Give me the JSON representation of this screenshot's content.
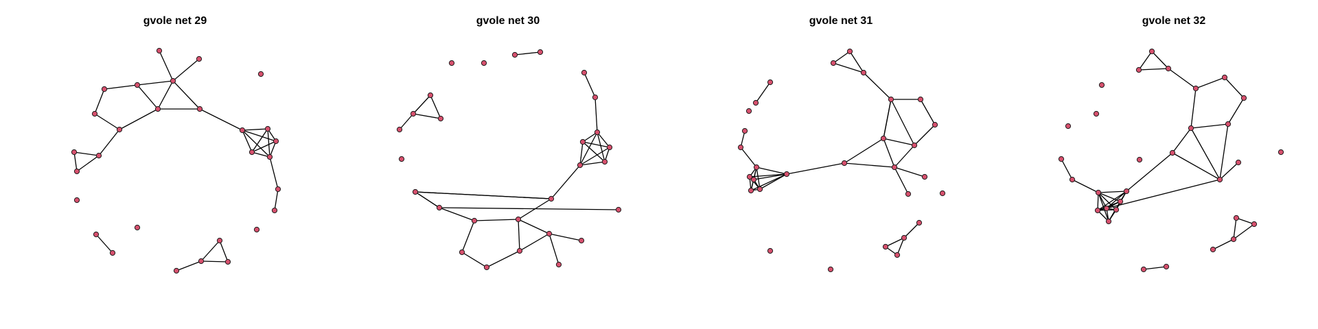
{
  "figure": {
    "panels": [
      {
        "title": "gvole net 29"
      },
      {
        "title": "gvole net 30"
      },
      {
        "title": "gvole net 31"
      },
      {
        "title": "gvole net 32"
      }
    ],
    "node_color": "#d6506d",
    "edge_color": "#000000"
  }
}
